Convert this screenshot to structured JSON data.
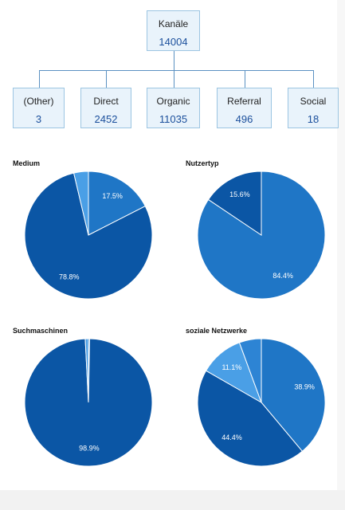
{
  "tree": {
    "root": {
      "label": "Kanäle",
      "value": "14004"
    },
    "children": [
      {
        "label": "(Other)",
        "value": "3"
      },
      {
        "label": "Direct",
        "value": "2452"
      },
      {
        "label": "Organic",
        "value": "11035"
      },
      {
        "label": "Referral",
        "value": "496"
      },
      {
        "label": "Social",
        "value": "18"
      }
    ]
  },
  "colors": {
    "dark": "#0b56a5",
    "medium": "#1f76c6",
    "light": "#4a9fe6",
    "node_fill": "#e9f3fb",
    "node_border": "#9cc5e2",
    "connector": "#5b91c2"
  },
  "chart_data": [
    {
      "type": "pie",
      "title": "Medium",
      "slices": [
        {
          "value": 17.5,
          "label": "17.5%",
          "color": "#1f76c6"
        },
        {
          "value": 78.8,
          "label": "78.8%",
          "color": "#0b56a5"
        },
        {
          "value": 3.7,
          "label": "",
          "color": "#4a9fe6"
        }
      ]
    },
    {
      "type": "pie",
      "title": "Nutzertyp",
      "slices": [
        {
          "value": 84.4,
          "label": "84.4%",
          "color": "#1f76c6"
        },
        {
          "value": 15.6,
          "label": "15.6%",
          "color": "#0b56a5"
        }
      ]
    },
    {
      "type": "pie",
      "title": "Suchmaschinen",
      "slices": [
        {
          "value": 0.3,
          "label": "",
          "color": "#1f76c6"
        },
        {
          "value": 98.9,
          "label": "98.9%",
          "color": "#0b56a5"
        },
        {
          "value": 0.8,
          "label": "",
          "color": "#4a9fe6"
        }
      ]
    },
    {
      "type": "pie",
      "title": "soziale Netzwerke",
      "slices": [
        {
          "value": 38.9,
          "label": "38.9%",
          "color": "#1f76c6"
        },
        {
          "value": 44.4,
          "label": "44.4%",
          "color": "#0b56a5"
        },
        {
          "value": 11.1,
          "label": "11.1%",
          "color": "#4a9fe6"
        },
        {
          "value": 5.6,
          "label": "",
          "color": "#2d84d4"
        }
      ]
    }
  ]
}
